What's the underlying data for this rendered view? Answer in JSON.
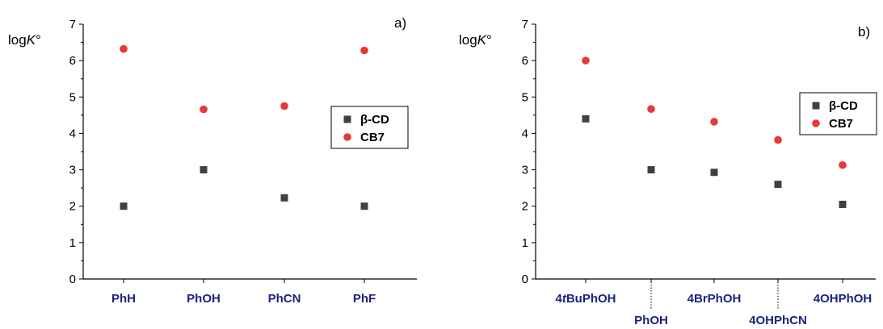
{
  "chart_data": [
    {
      "type": "scatter",
      "panel_label": "a)",
      "ylabel_prefix": "log",
      "ylabel_italic": "K",
      "ylabel_suffix": "°",
      "ylim": [
        0,
        7
      ],
      "yticks": [
        0,
        1,
        2,
        3,
        4,
        5,
        6,
        7
      ],
      "categories": [
        "PhH",
        "PhOH",
        "PhCN",
        "PhF"
      ],
      "series": [
        {
          "name": "β-CD",
          "color": "#404040",
          "marker": "square",
          "values": [
            2.0,
            3.0,
            2.23,
            2.0
          ]
        },
        {
          "name": "CB7",
          "color": "#e53935",
          "marker": "circle",
          "values": [
            6.32,
            4.66,
            4.75,
            6.28
          ]
        }
      ],
      "legend": "right"
    },
    {
      "type": "scatter",
      "panel_label": "b)",
      "ylabel_prefix": "log",
      "ylabel_italic": "K",
      "ylabel_suffix": "°",
      "ylim": [
        0,
        7
      ],
      "yticks": [
        0,
        1,
        2,
        3,
        4,
        5,
        6,
        7
      ],
      "categories": [
        "4tBuPhOH",
        "PhOH",
        "4BrPhOH",
        "4OHPhCN",
        "4OHPhOH"
      ],
      "category_parts": [
        [
          "4",
          "t",
          "BuPhOH"
        ],
        [
          "PhOH",
          "",
          ""
        ],
        [
          "4BrPhOH",
          "",
          ""
        ],
        [
          "4OHPhCN",
          "",
          ""
        ],
        [
          "4OHPhOH",
          "",
          ""
        ]
      ],
      "series": [
        {
          "name": "β-CD",
          "color": "#404040",
          "marker": "square",
          "values": [
            4.4,
            3.0,
            2.93,
            2.6,
            2.05
          ]
        },
        {
          "name": "CB7",
          "color": "#e53935",
          "marker": "circle",
          "values": [
            6.0,
            4.67,
            4.32,
            3.82,
            3.13
          ]
        }
      ],
      "legend": "top-right"
    }
  ]
}
